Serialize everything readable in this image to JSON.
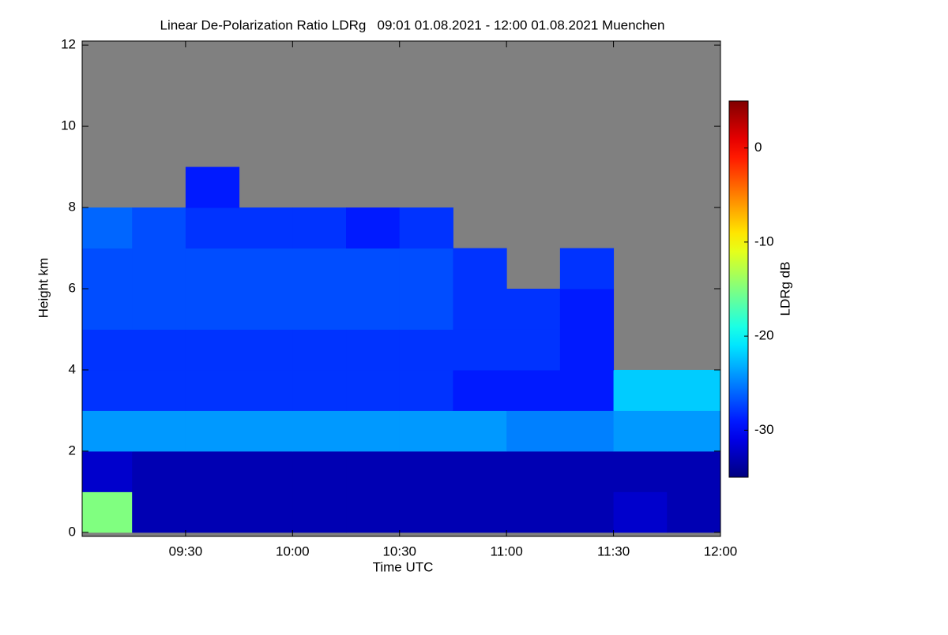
{
  "chart_data": {
    "type": "heatmap",
    "title": "Linear De-Polarization Ratio LDRg   09:01 01.08.2021 - 12:00 01.08.2021 Muenchen",
    "x_label": "Time UTC",
    "y_label": "Height km",
    "colorbar_label": "LDRg dB",
    "xlim": [
      9.0167,
      12
    ],
    "xticks": [
      {
        "value": 9.5,
        "label": "09:30"
      },
      {
        "value": 10,
        "label": "10:00"
      },
      {
        "value": 10.5,
        "label": "10:30"
      },
      {
        "value": 11,
        "label": "11:00"
      },
      {
        "value": 11.5,
        "label": "11:30"
      },
      {
        "value": 12,
        "label": "12:00"
      }
    ],
    "ylim": [
      -0.1,
      12.1
    ],
    "yticks": [
      0,
      2,
      4,
      6,
      8,
      10,
      12
    ],
    "zlim": [
      -35,
      5
    ],
    "zticks": [
      0,
      -10,
      -20,
      -30
    ],
    "colormap": "jet",
    "x_bins": [
      9,
      9.25,
      9.5,
      9.75,
      10,
      10.25,
      10.5,
      10.75,
      11,
      11.25,
      11.5,
      11.75,
      12
    ],
    "y_bins": [
      0,
      1,
      2,
      3,
      4,
      5,
      6,
      7,
      8,
      9,
      10,
      11,
      12
    ],
    "z": [
      [
        -15,
        -33,
        -33,
        -33,
        -33,
        -33,
        -33,
        -33,
        -33,
        -33,
        -32,
        -33
      ],
      [
        -32,
        -33,
        -33,
        -33,
        -33,
        -33,
        -33,
        -33,
        -33,
        -33,
        -33,
        -33
      ],
      [
        -24,
        -24,
        -24,
        -24,
        -24,
        -24,
        -24,
        -24,
        -25,
        -25,
        -24,
        -24
      ],
      [
        -28,
        -28,
        -28,
        -28,
        -28,
        -28,
        -28,
        -29,
        -29,
        -29,
        -22,
        -22
      ],
      [
        -28,
        -28,
        -28,
        -28,
        -28,
        -28,
        -28,
        -28,
        -28,
        -29,
        null,
        null
      ],
      [
        -27,
        -27,
        -27,
        -27,
        -27,
        -27,
        -27,
        -28,
        -28,
        -29,
        null,
        null
      ],
      [
        -27,
        -27,
        -27,
        -27,
        -27,
        -27,
        -27,
        -28,
        null,
        -28,
        null,
        null
      ],
      [
        -26,
        -27,
        -28,
        -28,
        -28,
        -29,
        -28,
        null,
        null,
        null,
        null,
        null
      ],
      [
        null,
        null,
        -29,
        null,
        null,
        null,
        null,
        null,
        null,
        null,
        null,
        null
      ],
      [
        null,
        null,
        null,
        null,
        null,
        null,
        null,
        null,
        null,
        null,
        null,
        null
      ],
      [
        null,
        null,
        null,
        null,
        null,
        null,
        null,
        null,
        null,
        null,
        null,
        null
      ],
      [
        null,
        null,
        null,
        null,
        null,
        null,
        null,
        null,
        null,
        null,
        null,
        null
      ]
    ]
  }
}
